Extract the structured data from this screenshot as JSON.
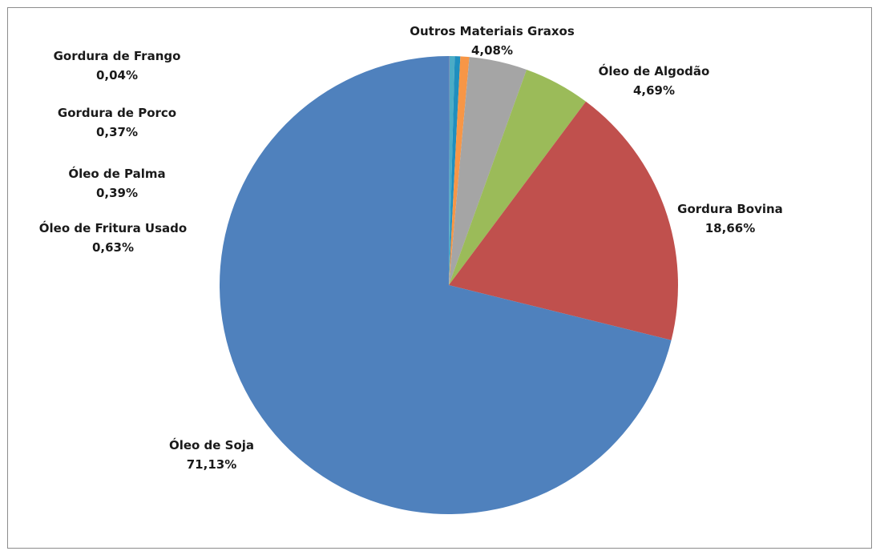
{
  "chart_data": {
    "type": "pie",
    "start_angle_deg": 0,
    "direction": "clockwise",
    "legend": "none",
    "slices": [
      {
        "label": "Gordura de Frango",
        "value": 0.04,
        "value_text": "0,04%",
        "color": "#8064A2"
      },
      {
        "label": "Gordura de Porco",
        "value": 0.37,
        "value_text": "0,37%",
        "color": "#4BACC6"
      },
      {
        "label": "Óleo de Palma",
        "value": 0.39,
        "value_text": "0,39%",
        "color": "#1F8FBF"
      },
      {
        "label": "Óleo de Fritura Usado",
        "value": 0.63,
        "value_text": "0,63%",
        "color": "#F79646"
      },
      {
        "label": "Outros Materiais Graxos",
        "value": 4.08,
        "value_text": "4,08%",
        "color": "#A5A5A5"
      },
      {
        "label": "Óleo de Algodão",
        "value": 4.69,
        "value_text": "4,69%",
        "color": "#9BBB59"
      },
      {
        "label": "Gordura Bovina",
        "value": 18.66,
        "value_text": "18,66%",
        "color": "#C0504D"
      },
      {
        "label": "Óleo de Soja",
        "value": 71.13,
        "value_text": "71,13%",
        "color": "#4F81BD"
      }
    ]
  }
}
